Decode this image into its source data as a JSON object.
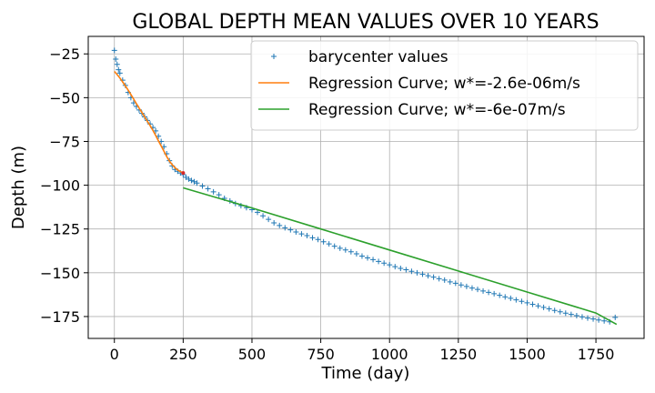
{
  "chart_data": {
    "type": "line",
    "title": "GLOBAL DEPTH MEAN VALUES OVER 10 YEARS",
    "xlabel": "Time (day)",
    "ylabel": "Depth (m)",
    "xlim": [
      -95,
      1925
    ],
    "ylim": [
      -187.5,
      -15
    ],
    "grid": true,
    "legend_position": "top-right",
    "x_ticks": [
      {
        "value": 0,
        "label": "0"
      },
      {
        "value": 250,
        "label": "250"
      },
      {
        "value": 500,
        "label": "500"
      },
      {
        "value": 750,
        "label": "750"
      },
      {
        "value": 1000,
        "label": "1000"
      },
      {
        "value": 1250,
        "label": "1250"
      },
      {
        "value": 1500,
        "label": "1500"
      },
      {
        "value": 1750,
        "label": "1750"
      }
    ],
    "y_ticks": [
      {
        "value": -25,
        "label": "−25"
      },
      {
        "value": -50,
        "label": "−50"
      },
      {
        "value": -75,
        "label": "−75"
      },
      {
        "value": -100,
        "label": "−100"
      },
      {
        "value": -125,
        "label": "−125"
      },
      {
        "value": -150,
        "label": "−150"
      },
      {
        "value": -175,
        "label": "−175"
      }
    ],
    "series": [
      {
        "name": "barycenter values",
        "style": "marker-plus",
        "color": "#1f77b4",
        "x": [
          0,
          5,
          10,
          15,
          20,
          30,
          40,
          50,
          60,
          70,
          80,
          90,
          100,
          110,
          120,
          130,
          140,
          150,
          160,
          170,
          180,
          190,
          200,
          210,
          220,
          230,
          240,
          250,
          260,
          270,
          280,
          290,
          300,
          320,
          340,
          360,
          380,
          400,
          420,
          440,
          460,
          480,
          500,
          520,
          540,
          560,
          580,
          600,
          620,
          640,
          660,
          680,
          700,
          720,
          740,
          760,
          780,
          800,
          820,
          840,
          860,
          880,
          900,
          920,
          940,
          960,
          980,
          1000,
          1020,
          1040,
          1060,
          1080,
          1100,
          1120,
          1140,
          1160,
          1180,
          1200,
          1220,
          1240,
          1260,
          1280,
          1300,
          1320,
          1340,
          1360,
          1380,
          1400,
          1420,
          1440,
          1460,
          1480,
          1500,
          1520,
          1540,
          1560,
          1580,
          1600,
          1620,
          1640,
          1660,
          1680,
          1700,
          1720,
          1740,
          1760,
          1780,
          1800,
          1820
        ],
        "y": [
          -23,
          -28,
          -31,
          -34,
          -36,
          -40,
          -43,
          -47,
          -50,
          -53,
          -55,
          -57,
          -59,
          -61,
          -63,
          -65,
          -67,
          -69,
          -72,
          -75,
          -78,
          -82,
          -86,
          -89,
          -91,
          -92,
          -93,
          -94,
          -95.5,
          -96.5,
          -97.3,
          -98,
          -98.8,
          -100.5,
          -102,
          -103.8,
          -105.5,
          -107.5,
          -109,
          -110.5,
          -111.7,
          -112.8,
          -114,
          -115.5,
          -117.5,
          -119.5,
          -121.5,
          -123,
          -124.3,
          -125.5,
          -126.7,
          -127.8,
          -128.8,
          -130,
          -131,
          -132.3,
          -133.5,
          -134.8,
          -136,
          -137,
          -138,
          -139.2,
          -140.5,
          -141.5,
          -142.5,
          -143.5,
          -144.5,
          -145.5,
          -146.5,
          -147.5,
          -148.3,
          -149.2,
          -150,
          -150.8,
          -151.7,
          -152.5,
          -153.4,
          -154.2,
          -155.2,
          -156,
          -157,
          -157.8,
          -158.7,
          -159.5,
          -160.4,
          -161.2,
          -162,
          -162.9,
          -163.8,
          -164.6,
          -165.5,
          -166.3,
          -167.2,
          -168,
          -168.9,
          -169.8,
          -170.6,
          -171.5,
          -172.3,
          -173.1,
          -173.8,
          -174.5,
          -175.2,
          -175.9,
          -176.4,
          -177,
          -177.5,
          -178,
          -175.5
        ]
      },
      {
        "name": "Regression Curve; w*=-2.6e-06m/s",
        "style": "line",
        "color": "#ff7f0e",
        "x": [
          0,
          10,
          20,
          30,
          40,
          50,
          60,
          70,
          80,
          90,
          100,
          110,
          120,
          130,
          140,
          150,
          160,
          170,
          180,
          190,
          200,
          210,
          220,
          230,
          240,
          250
        ],
        "y": [
          -35,
          -36.8,
          -38.8,
          -41,
          -43.3,
          -45.7,
          -48.2,
          -50.8,
          -53.4,
          -56,
          -58.5,
          -61,
          -63.5,
          -66,
          -68.7,
          -71.6,
          -74.6,
          -77.6,
          -80.6,
          -83.6,
          -86.2,
          -88.3,
          -90,
          -91.3,
          -92.2,
          -93
        ]
      },
      {
        "name": "Regression Curve; w*=-6e-07m/s",
        "style": "line",
        "color": "#2ca02c",
        "x": [
          250,
          500,
          750,
          1000,
          1250,
          1500,
          1750,
          1825
        ],
        "y": [
          -101.5,
          -113,
          -125,
          -137,
          -149,
          -161,
          -173,
          -179.5
        ]
      }
    ],
    "highlight_points": [
      {
        "x": 250,
        "y": -93,
        "color": "#d62728"
      }
    ]
  }
}
